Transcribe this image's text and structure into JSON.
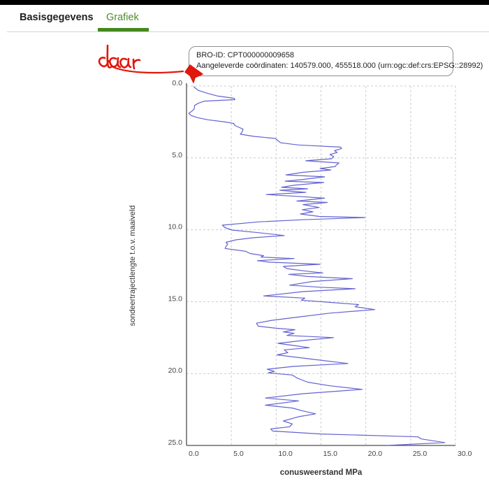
{
  "tabs": {
    "items": [
      {
        "label": "Basisgegevens",
        "active": false
      },
      {
        "label": "Grafiek",
        "active": true
      }
    ],
    "active_color": "#4e8c28",
    "underline_color": "#44881e"
  },
  "info_box": {
    "bro_id_line": "BRO-ID: CPT000000009658",
    "coords_line": "Aangeleverde coördinaten: 140579.000, 455518.000 (urn:ogc:def:crs:EPSG::28992)"
  },
  "annotation": {
    "text": "daar",
    "color": "#e0170c"
  },
  "chart_data": {
    "type": "line",
    "title": "",
    "xlabel": "conusweerstand MPa",
    "ylabel": "sondeertrajectlengte t.o.v. maaiveld",
    "xlim": [
      0,
      30
    ],
    "ylim": [
      0,
      25
    ],
    "y_axis_inverted": true,
    "grid": true,
    "x_tick_values": [
      0,
      5,
      10,
      15,
      20,
      25,
      30
    ],
    "x_tick_labels": [
      "0.0",
      "5.0",
      "10.0",
      "15.0",
      "20.0",
      "25.0",
      "30.0"
    ],
    "y_tick_values": [
      0,
      5,
      10,
      15,
      20,
      25
    ],
    "y_tick_labels": [
      "0.0",
      "5.0",
      "10.0",
      "15.0",
      "20.0",
      "25.0"
    ],
    "line_color": "#6363d1",
    "axis_color": "#4d4d4d",
    "grid_color": "#cccccc",
    "tick_text_color": "#444444",
    "series": [
      {
        "name": "conusweerstand",
        "units": {
          "depth": "m t.o.v. maaiveld",
          "qc": "MPa"
        },
        "points": [
          [
            0.05,
            0.8
          ],
          [
            0.3,
            1.3
          ],
          [
            0.5,
            2.3
          ],
          [
            0.7,
            3.5
          ],
          [
            0.85,
            5.3
          ],
          [
            0.95,
            5.4
          ],
          [
            1.05,
            2.0
          ],
          [
            1.2,
            1.3
          ],
          [
            1.35,
            0.9
          ],
          [
            1.6,
            0.85
          ],
          [
            1.75,
            0.6
          ],
          [
            1.9,
            0.25
          ],
          [
            2.05,
            0.5
          ],
          [
            2.2,
            1.2
          ],
          [
            2.35,
            2.4
          ],
          [
            2.5,
            4.3
          ],
          [
            2.6,
            5.25
          ],
          [
            2.75,
            5.4
          ],
          [
            3.0,
            6.3
          ],
          [
            3.2,
            6.2
          ],
          [
            3.35,
            6.0
          ],
          [
            3.5,
            7.5
          ],
          [
            3.65,
            9.9
          ],
          [
            3.8,
            10.2
          ],
          [
            3.95,
            10.5
          ],
          [
            4.1,
            12.5
          ],
          [
            4.25,
            17.2
          ],
          [
            4.35,
            17.3
          ],
          [
            4.5,
            16.5
          ],
          [
            4.62,
            16.8
          ],
          [
            4.77,
            16.0
          ],
          [
            4.9,
            16.4
          ],
          [
            5.06,
            16.2
          ],
          [
            5.2,
            13.3
          ],
          [
            5.35,
            17.0
          ],
          [
            5.5,
            16.7
          ],
          [
            5.6,
            16.6
          ],
          [
            5.74,
            14.9
          ],
          [
            5.84,
            16.1
          ],
          [
            6.0,
            13.0
          ],
          [
            6.18,
            11.1
          ],
          [
            6.32,
            15.4
          ],
          [
            6.5,
            13.0
          ],
          [
            6.62,
            11.0
          ],
          [
            6.71,
            15.3
          ],
          [
            6.9,
            12.0
          ],
          [
            7.05,
            10.6
          ],
          [
            7.15,
            13.5
          ],
          [
            7.25,
            10.4
          ],
          [
            7.4,
            13.3
          ],
          [
            7.55,
            8.9
          ],
          [
            7.7,
            13.0
          ],
          [
            7.8,
            15.4
          ],
          [
            8.0,
            12.3
          ],
          [
            8.1,
            15.7
          ],
          [
            8.25,
            13.0
          ],
          [
            8.45,
            14.8
          ],
          [
            8.6,
            12.9
          ],
          [
            8.75,
            14.1
          ],
          [
            8.9,
            12.7
          ],
          [
            9.07,
            14.8
          ],
          [
            9.15,
            19.9
          ],
          [
            9.3,
            13.0
          ],
          [
            9.45,
            8.0
          ],
          [
            9.68,
            4.0
          ],
          [
            9.85,
            4.3
          ],
          [
            10.02,
            5.1
          ],
          [
            10.2,
            8.0
          ],
          [
            10.4,
            10.9
          ],
          [
            10.55,
            7.5
          ],
          [
            10.7,
            5.5
          ],
          [
            10.87,
            4.4
          ],
          [
            11.0,
            4.6
          ],
          [
            11.15,
            4.4
          ],
          [
            11.3,
            4.3
          ],
          [
            11.5,
            6.6
          ],
          [
            11.65,
            7.1
          ],
          [
            11.8,
            8.6
          ],
          [
            11.9,
            8.3
          ],
          [
            12.0,
            12.0
          ],
          [
            12.15,
            7.9
          ],
          [
            12.25,
            9.2
          ],
          [
            12.4,
            14.9
          ],
          [
            12.55,
            10.8
          ],
          [
            12.7,
            11.2
          ],
          [
            12.85,
            13.0
          ],
          [
            13.0,
            15.2
          ],
          [
            13.1,
            11.4
          ],
          [
            13.25,
            13.5
          ],
          [
            13.4,
            18.5
          ],
          [
            13.6,
            14.0
          ],
          [
            13.85,
            11.5
          ],
          [
            14.0,
            15.0
          ],
          [
            14.1,
            18.8
          ],
          [
            14.3,
            13.0
          ],
          [
            14.6,
            8.6
          ],
          [
            14.75,
            13.2
          ],
          [
            14.9,
            12.8
          ],
          [
            15.05,
            16.0
          ],
          [
            15.2,
            19.2
          ],
          [
            15.35,
            18.8
          ],
          [
            15.55,
            21.0
          ],
          [
            15.8,
            16.0
          ],
          [
            16.05,
            12.7
          ],
          [
            16.3,
            9.5
          ],
          [
            16.5,
            7.8
          ],
          [
            16.7,
            8.0
          ],
          [
            16.85,
            10.0
          ],
          [
            16.95,
            12.1
          ],
          [
            17.1,
            10.8
          ],
          [
            17.2,
            12.0
          ],
          [
            17.35,
            11.2
          ],
          [
            17.5,
            16.4
          ],
          [
            17.7,
            13.0
          ],
          [
            17.9,
            10.2
          ],
          [
            18.05,
            12.0
          ],
          [
            18.2,
            13.7
          ],
          [
            18.35,
            10.9
          ],
          [
            18.55,
            11.3
          ],
          [
            18.7,
            10.1
          ],
          [
            19.0,
            14.0
          ],
          [
            19.3,
            18.0
          ],
          [
            19.5,
            12.0
          ],
          [
            19.7,
            9.0
          ],
          [
            19.85,
            9.8
          ],
          [
            19.95,
            9.1
          ],
          [
            20.1,
            11.8
          ],
          [
            20.3,
            12.3
          ],
          [
            20.6,
            13.5
          ],
          [
            20.85,
            16.0
          ],
          [
            21.1,
            19.6
          ],
          [
            21.4,
            13.0
          ],
          [
            21.7,
            8.8
          ],
          [
            21.9,
            12.5
          ],
          [
            22.2,
            8.8
          ],
          [
            22.4,
            11.8
          ],
          [
            22.6,
            13.0
          ],
          [
            22.8,
            14.4
          ],
          [
            23.0,
            12.5
          ],
          [
            23.3,
            10.8
          ],
          [
            23.5,
            11.8
          ],
          [
            23.7,
            11.5
          ],
          [
            23.85,
            9.4
          ],
          [
            24.0,
            9.6
          ],
          [
            24.2,
            15.0
          ],
          [
            24.4,
            25.8
          ],
          [
            24.55,
            26.2
          ],
          [
            24.8,
            28.8
          ],
          [
            25.0,
            22.3
          ]
        ]
      }
    ]
  }
}
